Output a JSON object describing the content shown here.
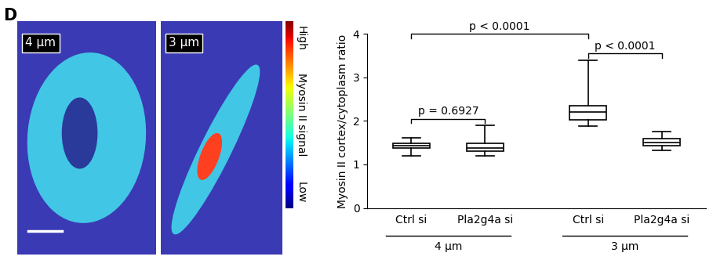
{
  "panel": "D",
  "images": [
    {
      "label": "4 μm"
    },
    {
      "label": "3 μm"
    }
  ],
  "colorbar": {
    "label": "Myosin II signal",
    "high": "High",
    "low": "Low"
  },
  "chart_data": {
    "type": "box",
    "ylabel": "Myosin II cortex/cytoplasm ratio",
    "categories": [
      "Ctrl si",
      "Pla2g4a si",
      "Ctrl si",
      "Pla2g4a si"
    ],
    "groups": [
      "4 μm",
      "4 μm",
      "3 μm",
      "3 μm"
    ],
    "whisker_low": [
      1.2,
      1.2,
      1.88,
      1.33
    ],
    "q1": [
      1.38,
      1.3,
      2.03,
      1.43
    ],
    "median": [
      1.43,
      1.38,
      2.2,
      1.5
    ],
    "q3": [
      1.48,
      1.48,
      2.35,
      1.6
    ],
    "whisker_high": [
      1.62,
      1.9,
      3.4,
      1.75
    ],
    "color": "#000000",
    "ylim": [
      0,
      4
    ],
    "yticks": [
      0,
      1,
      2,
      3,
      4
    ],
    "comparisons": [
      {
        "a": 0,
        "b": 1,
        "label": "p = 0.6927"
      },
      {
        "a": 2,
        "b": 3,
        "label": "p < 0.0001"
      },
      {
        "a": 0,
        "b": 2,
        "label": "p < 0.0001"
      }
    ]
  }
}
